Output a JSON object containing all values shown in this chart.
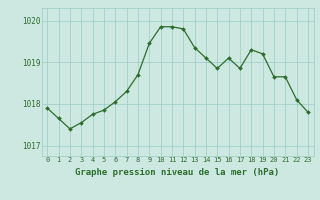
{
  "x": [
    0,
    1,
    2,
    3,
    4,
    5,
    6,
    7,
    8,
    9,
    10,
    11,
    12,
    13,
    14,
    15,
    16,
    17,
    18,
    19,
    20,
    21,
    22,
    23
  ],
  "y": [
    1017.9,
    1017.65,
    1017.4,
    1017.55,
    1017.75,
    1017.85,
    1018.05,
    1018.3,
    1018.7,
    1019.45,
    1019.85,
    1019.85,
    1019.8,
    1019.35,
    1019.1,
    1018.85,
    1019.1,
    1018.85,
    1019.3,
    1019.2,
    1018.65,
    1018.65,
    1018.1,
    1017.8
  ],
  "ylim": [
    1016.75,
    1020.3
  ],
  "yticks": [
    1017,
    1018,
    1019,
    1020
  ],
  "xticks": [
    0,
    1,
    2,
    3,
    4,
    5,
    6,
    7,
    8,
    9,
    10,
    11,
    12,
    13,
    14,
    15,
    16,
    17,
    18,
    19,
    20,
    21,
    22,
    23
  ],
  "line_color": "#2d6e2d",
  "marker_color": "#2d6e2d",
  "bg_color": "#cce8e0",
  "grid_color": "#99ccc4",
  "xlabel": "Graphe pression niveau de la mer (hPa)",
  "xlabel_color": "#2d6e2d",
  "tick_color": "#2d6e2d",
  "xlabel_fontsize": 6.5,
  "xtick_fontsize": 5.0,
  "ytick_fontsize": 5.5,
  "bottom_bar_color": "#336633"
}
